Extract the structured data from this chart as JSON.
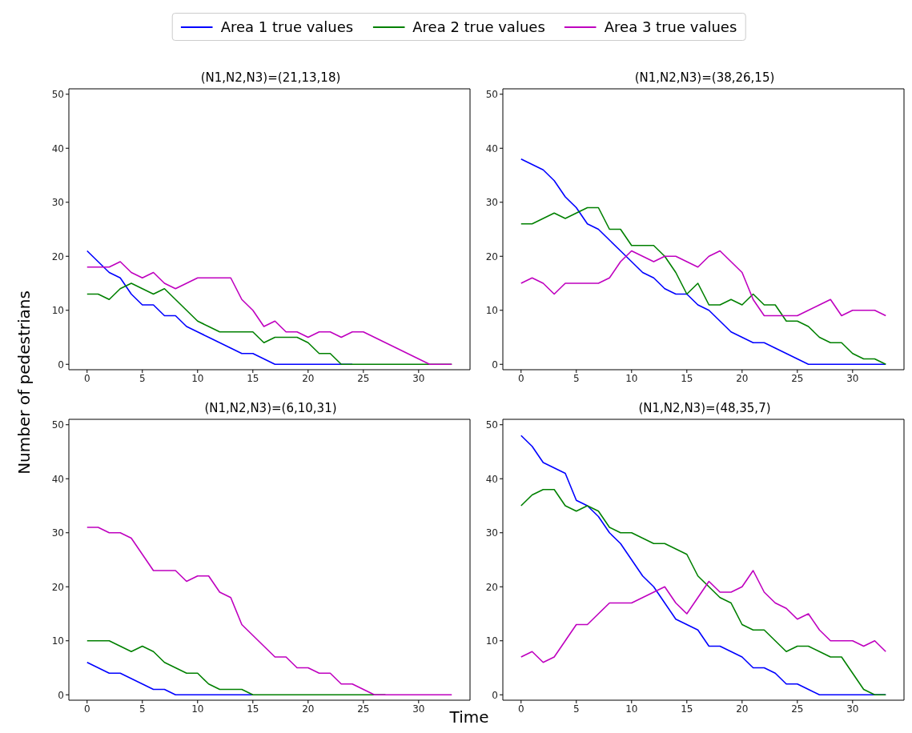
{
  "chart_data": [
    {
      "type": "line",
      "title": "(N1,N2,N3)=(21,13,18)",
      "xlabel": "Time",
      "ylabel": "Number of pedestrians",
      "legend": "top",
      "grid": false,
      "marker": "none",
      "line_style": "solid",
      "x": [
        0,
        1,
        2,
        3,
        4,
        5,
        6,
        7,
        8,
        9,
        10,
        11,
        12,
        13,
        14,
        15,
        16,
        17,
        18,
        19,
        20,
        21,
        22,
        23,
        24,
        25,
        26,
        27,
        28,
        29,
        30,
        31,
        32,
        33
      ],
      "xlim": [
        -1.65,
        34.65
      ],
      "xticks": [
        0,
        5,
        10,
        15,
        20,
        25,
        30
      ],
      "ylim": [
        -1,
        51
      ],
      "yticks": [
        0,
        10,
        20,
        30,
        40,
        50
      ],
      "series": [
        {
          "name": "Area 1 true values",
          "color": "#0000ff",
          "values": [
            21,
            19,
            17,
            16,
            13,
            11,
            11,
            9,
            9,
            7,
            6,
            5,
            4,
            3,
            2,
            2,
            1,
            0,
            0,
            0,
            0,
            0,
            0,
            0,
            0,
            null,
            null,
            null,
            null,
            null,
            null,
            null,
            null,
            null
          ]
        },
        {
          "name": "Area 2 true values",
          "color": "#008000",
          "values": [
            13,
            13,
            12,
            14,
            15,
            14,
            13,
            14,
            12,
            10,
            8,
            7,
            6,
            6,
            6,
            6,
            4,
            5,
            5,
            5,
            4,
            2,
            2,
            0,
            0,
            0,
            0,
            0,
            0,
            0,
            0,
            0,
            0,
            0
          ]
        },
        {
          "name": "Area 3 true values",
          "color": "#bf00bf",
          "values": [
            18,
            18,
            18,
            19,
            17,
            16,
            17,
            15,
            14,
            15,
            16,
            16,
            16,
            16,
            12,
            10,
            7,
            8,
            6,
            6,
            5,
            6,
            6,
            5,
            6,
            6,
            5,
            4,
            3,
            2,
            1,
            0,
            0,
            0
          ]
        }
      ]
    },
    {
      "type": "line",
      "title": "(N1,N2,N3)=(38,26,15)",
      "grid": false,
      "marker": "none",
      "line_style": "solid",
      "x": [
        0,
        1,
        2,
        3,
        4,
        5,
        6,
        7,
        8,
        9,
        10,
        11,
        12,
        13,
        14,
        15,
        16,
        17,
        18,
        19,
        20,
        21,
        22,
        23,
        24,
        25,
        26,
        27,
        28,
        29,
        30,
        31,
        32,
        33
      ],
      "xlim": [
        -1.65,
        34.65
      ],
      "xticks": [
        0,
        5,
        10,
        15,
        20,
        25,
        30
      ],
      "ylim": [
        -1,
        51
      ],
      "yticks": [
        0,
        10,
        20,
        30,
        40,
        50
      ],
      "series": [
        {
          "color": "#0000ff",
          "values": [
            38,
            37,
            36,
            34,
            31,
            29,
            26,
            25,
            23,
            21,
            19,
            17,
            16,
            14,
            13,
            13,
            11,
            10,
            8,
            6,
            5,
            4,
            4,
            3,
            2,
            1,
            0,
            0,
            0,
            0,
            0,
            0,
            0,
            0
          ]
        },
        {
          "color": "#008000",
          "values": [
            26,
            26,
            27,
            28,
            27,
            28,
            29,
            29,
            25,
            25,
            22,
            22,
            22,
            20,
            17,
            13,
            15,
            11,
            11,
            12,
            11,
            13,
            11,
            11,
            8,
            8,
            7,
            5,
            4,
            4,
            2,
            1,
            1,
            0
          ]
        },
        {
          "color": "#bf00bf",
          "values": [
            15,
            16,
            15,
            13,
            15,
            15,
            15,
            15,
            16,
            19,
            21,
            20,
            19,
            20,
            20,
            19,
            18,
            20,
            21,
            19,
            17,
            12,
            9,
            9,
            9,
            9,
            10,
            11,
            12,
            9,
            10,
            10,
            10,
            9
          ]
        }
      ]
    },
    {
      "type": "line",
      "title": "(N1,N2,N3)=(6,10,31)",
      "grid": false,
      "marker": "none",
      "line_style": "solid",
      "x": [
        0,
        1,
        2,
        3,
        4,
        5,
        6,
        7,
        8,
        9,
        10,
        11,
        12,
        13,
        14,
        15,
        16,
        17,
        18,
        19,
        20,
        21,
        22,
        23,
        24,
        25,
        26,
        27,
        28,
        29,
        30,
        31,
        32,
        33
      ],
      "xlim": [
        -1.65,
        34.65
      ],
      "xticks": [
        0,
        5,
        10,
        15,
        20,
        25,
        30
      ],
      "ylim": [
        -1,
        51
      ],
      "yticks": [
        0,
        10,
        20,
        30,
        40,
        50
      ],
      "series": [
        {
          "color": "#0000ff",
          "values": [
            6,
            5,
            4,
            4,
            3,
            2,
            1,
            1,
            0,
            0,
            0,
            0,
            0,
            0,
            0,
            0,
            null,
            null,
            null,
            null,
            null,
            null,
            null,
            null,
            null,
            null,
            null,
            null,
            null,
            null,
            null,
            null,
            null,
            null
          ]
        },
        {
          "color": "#008000",
          "values": [
            10,
            10,
            10,
            9,
            8,
            9,
            8,
            6,
            5,
            4,
            4,
            2,
            1,
            1,
            1,
            0,
            0,
            0,
            0,
            0,
            0,
            0,
            0,
            0,
            0,
            0,
            0,
            0,
            null,
            null,
            null,
            null,
            null,
            null
          ]
        },
        {
          "color": "#bf00bf",
          "values": [
            31,
            31,
            30,
            30,
            29,
            26,
            23,
            23,
            23,
            21,
            22,
            22,
            19,
            18,
            13,
            11,
            9,
            7,
            7,
            5,
            5,
            4,
            4,
            2,
            2,
            1,
            0,
            0,
            0,
            0,
            0,
            0,
            0,
            0
          ]
        }
      ]
    },
    {
      "type": "line",
      "title": "(N1,N2,N3)=(48,35,7)",
      "grid": false,
      "marker": "none",
      "line_style": "solid",
      "x": [
        0,
        1,
        2,
        3,
        4,
        5,
        6,
        7,
        8,
        9,
        10,
        11,
        12,
        13,
        14,
        15,
        16,
        17,
        18,
        19,
        20,
        21,
        22,
        23,
        24,
        25,
        26,
        27,
        28,
        29,
        30,
        31,
        32,
        33
      ],
      "xlim": [
        -1.65,
        34.65
      ],
      "xticks": [
        0,
        5,
        10,
        15,
        20,
        25,
        30
      ],
      "ylim": [
        -1,
        51
      ],
      "yticks": [
        0,
        10,
        20,
        30,
        40,
        50
      ],
      "series": [
        {
          "color": "#0000ff",
          "values": [
            48,
            46,
            43,
            42,
            41,
            36,
            35,
            33,
            30,
            28,
            25,
            22,
            20,
            17,
            14,
            13,
            12,
            9,
            9,
            8,
            7,
            5,
            5,
            4,
            2,
            2,
            1,
            0,
            0,
            0,
            0,
            0,
            0,
            0
          ]
        },
        {
          "color": "#008000",
          "values": [
            35,
            37,
            38,
            38,
            35,
            34,
            35,
            34,
            31,
            30,
            30,
            29,
            28,
            28,
            27,
            26,
            22,
            20,
            18,
            17,
            13,
            12,
            12,
            10,
            8,
            9,
            9,
            8,
            7,
            7,
            4,
            1,
            0,
            0
          ]
        },
        {
          "color": "#bf00bf",
          "values": [
            7,
            8,
            6,
            7,
            10,
            13,
            13,
            15,
            17,
            17,
            17,
            18,
            19,
            20,
            17,
            15,
            18,
            21,
            19,
            19,
            20,
            23,
            19,
            17,
            16,
            14,
            15,
            12,
            10,
            10,
            10,
            9,
            10,
            8
          ]
        }
      ]
    }
  ]
}
